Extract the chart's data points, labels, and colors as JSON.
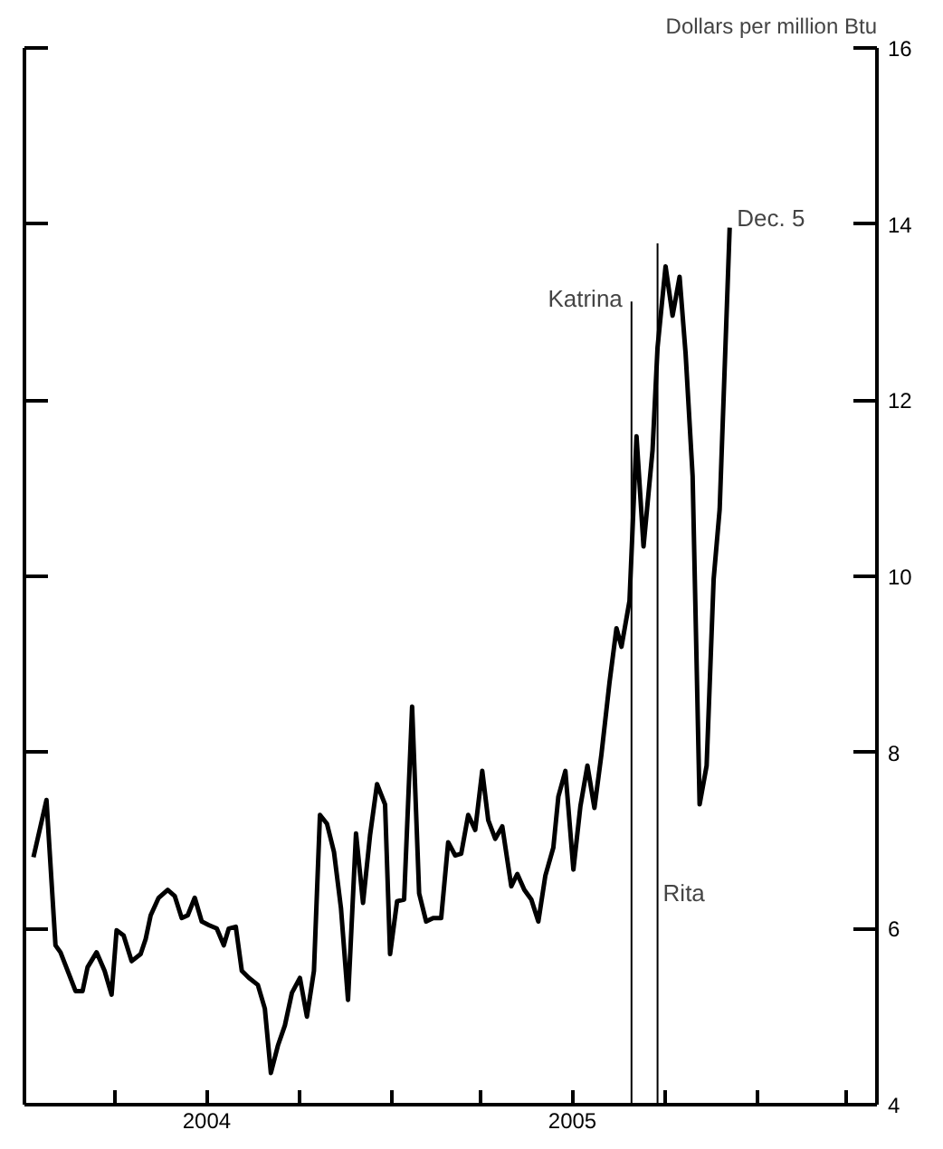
{
  "chart_data": {
    "type": "line",
    "ylabel": "Dollars per million Btu",
    "x": [
      "2004-01-10",
      "2004-01-23",
      "2004-02-01",
      "2004-02-06",
      "2004-02-21",
      "2004-02-28",
      "2004-03-04",
      "2004-03-13",
      "2004-03-21",
      "2004-03-28",
      "2004-04-02",
      "2004-04-09",
      "2004-04-17",
      "2004-04-26",
      "2004-05-01",
      "2004-05-06",
      "2004-05-14",
      "2004-05-23",
      "2004-05-30",
      "2004-06-06",
      "2004-06-12",
      "2004-06-19",
      "2004-06-26",
      "2004-07-03",
      "2004-07-11",
      "2004-07-18",
      "2004-07-23",
      "2004-07-30",
      "2004-08-05",
      "2004-08-12",
      "2004-08-21",
      "2004-08-28",
      "2004-09-03",
      "2004-09-10",
      "2004-09-17",
      "2004-09-24",
      "2004-10-02",
      "2004-10-09",
      "2004-10-16",
      "2004-10-22",
      "2004-10-29",
      "2004-11-05",
      "2004-11-12",
      "2004-11-19",
      "2004-11-27",
      "2004-12-04",
      "2004-12-11",
      "2004-12-18",
      "2004-12-26",
      "2004-12-31",
      "2005-01-07",
      "2005-01-14",
      "2005-01-22",
      "2005-01-29",
      "2005-02-05",
      "2005-02-12",
      "2005-02-20",
      "2005-02-27",
      "2005-03-06",
      "2005-03-12",
      "2005-03-19",
      "2005-03-26",
      "2005-04-02",
      "2005-04-08",
      "2005-04-15",
      "2005-04-22",
      "2005-05-01",
      "2005-05-07",
      "2005-05-14",
      "2005-05-21",
      "2005-05-28",
      "2005-06-04",
      "2005-06-12",
      "2005-06-17",
      "2005-06-24",
      "2005-07-02",
      "2005-07-09",
      "2005-07-16",
      "2005-07-23",
      "2005-07-30",
      "2005-08-07",
      "2005-08-14",
      "2005-08-19",
      "2005-08-27",
      "2005-09-03",
      "2005-09-10",
      "2005-09-19",
      "2005-09-24",
      "2005-10-02",
      "2005-10-09",
      "2005-10-16",
      "2005-10-22",
      "2005-10-29",
      "2005-11-05",
      "2005-11-12",
      "2005-11-19",
      "2005-11-25",
      "2005-12-05"
    ],
    "series": [
      {
        "color": "#000000",
        "values": [
          6.81,
          7.46,
          5.81,
          5.73,
          5.29,
          5.29,
          5.56,
          5.73,
          5.52,
          5.25,
          5.98,
          5.92,
          5.63,
          5.71,
          5.88,
          6.15,
          6.35,
          6.44,
          6.37,
          6.12,
          6.15,
          6.35,
          6.08,
          6.04,
          6.0,
          5.81,
          6.0,
          6.02,
          5.52,
          5.44,
          5.36,
          5.09,
          4.36,
          4.67,
          4.9,
          5.27,
          5.44,
          5.0,
          5.52,
          7.29,
          7.19,
          6.87,
          6.23,
          5.19,
          7.08,
          6.29,
          7.06,
          7.64,
          7.41,
          5.71,
          6.31,
          6.33,
          8.52,
          6.4,
          6.08,
          6.12,
          6.12,
          6.98,
          6.83,
          6.85,
          7.29,
          7.12,
          7.79,
          7.23,
          7.02,
          7.16,
          6.48,
          6.62,
          6.44,
          6.33,
          6.08,
          6.6,
          6.92,
          7.5,
          7.79,
          6.67,
          7.39,
          7.85,
          7.37,
          7.98,
          8.79,
          9.41,
          9.2,
          9.72,
          11.59,
          10.34,
          11.43,
          12.6,
          13.52,
          12.96,
          13.4,
          12.53,
          11.14,
          7.41,
          7.85,
          9.97,
          10.76,
          13.96
        ]
      }
    ],
    "xlim": [
      "2004-01-01",
      "2006-05-01"
    ],
    "xticks": [
      {
        "value": "2004-04-01",
        "label": null
      },
      {
        "value": "2004-07-01",
        "label": "2004"
      },
      {
        "value": "2004-10-01",
        "label": null
      },
      {
        "value": "2005-01-01",
        "label": null
      },
      {
        "value": "2005-04-01",
        "label": null
      },
      {
        "value": "2005-07-01",
        "label": "2005"
      },
      {
        "value": "2005-10-01",
        "label": null
      },
      {
        "value": "2006-01-01",
        "label": null
      },
      {
        "value": "2006-04-01",
        "label": null
      }
    ],
    "ylim": [
      4,
      16
    ],
    "yticks": [
      4,
      6,
      8,
      10,
      12,
      14,
      16
    ],
    "ref_lines": [
      {
        "axis": "x",
        "value": "2005-08-29",
        "label": "Katrina"
      },
      {
        "axis": "x",
        "value": "2005-09-24",
        "label": "Rita"
      }
    ],
    "annotations": [
      {
        "text": "Dec. 5",
        "x": "2005-12-05",
        "y": 13.96
      }
    ],
    "grid": false
  }
}
